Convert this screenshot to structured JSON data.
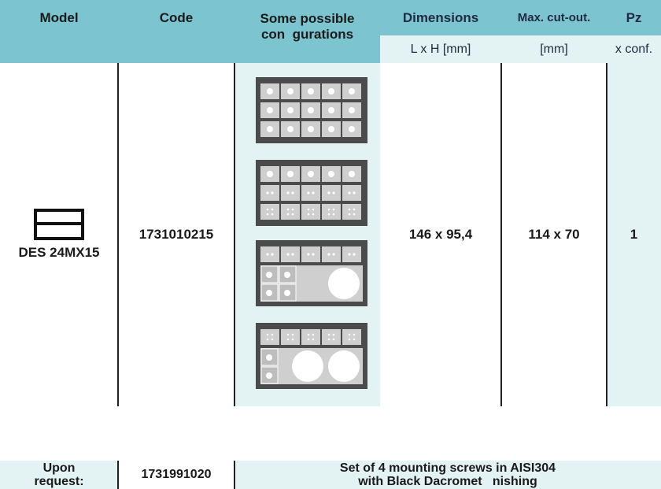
{
  "header": {
    "model": "Model",
    "code": "Code",
    "configs": [
      "Some possible",
      "con  gurations"
    ],
    "dimensions": "Dimensions",
    "dimensions_unit": "L x H [mm]",
    "cutout": "Max. cut-out.",
    "cutout_unit": "[mm]",
    "pz": "Pz",
    "pz_unit": "x conf."
  },
  "row": {
    "model": "DES 24MX15",
    "code": "1731010215",
    "dimensions": "146 x 95,4",
    "cutout": "114 x 70",
    "pz": 1
  },
  "accessory": {
    "label": [
      "Upon",
      "request:"
    ],
    "code": "1731991020",
    "description": [
      "Set of 4 mounting screws in AISI304",
      "with Black Dacromet   nishing"
    ]
  }
}
